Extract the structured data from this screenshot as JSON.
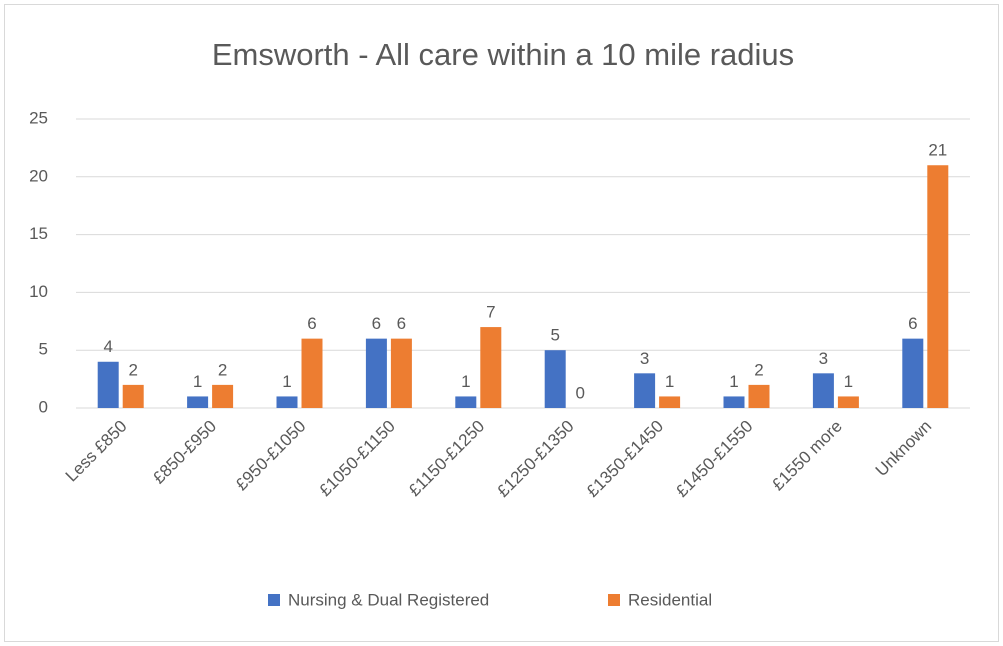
{
  "chart_data": {
    "type": "bar",
    "title": "Emsworth - All care within a 10 mile radius",
    "categories": [
      "Less £850",
      "£850-£950",
      "£950-£1050",
      "£1050-£1150",
      "£1150-£1250",
      "£1250-£1350",
      "£1350-£1450",
      "£1450-£1550",
      "£1550 more",
      "Unknown"
    ],
    "series": [
      {
        "name": "Nursing & Dual Registered",
        "color": "#4472c4",
        "values": [
          4,
          1,
          1,
          6,
          1,
          5,
          3,
          1,
          3,
          6
        ]
      },
      {
        "name": "Residential",
        "color": "#ed7d31",
        "values": [
          2,
          2,
          6,
          6,
          7,
          0,
          1,
          2,
          1,
          21
        ]
      }
    ],
    "ylim": [
      0,
      25
    ],
    "yticks": [
      0,
      5,
      10,
      15,
      20,
      25
    ],
    "grid": true,
    "legend": "bottom"
  }
}
